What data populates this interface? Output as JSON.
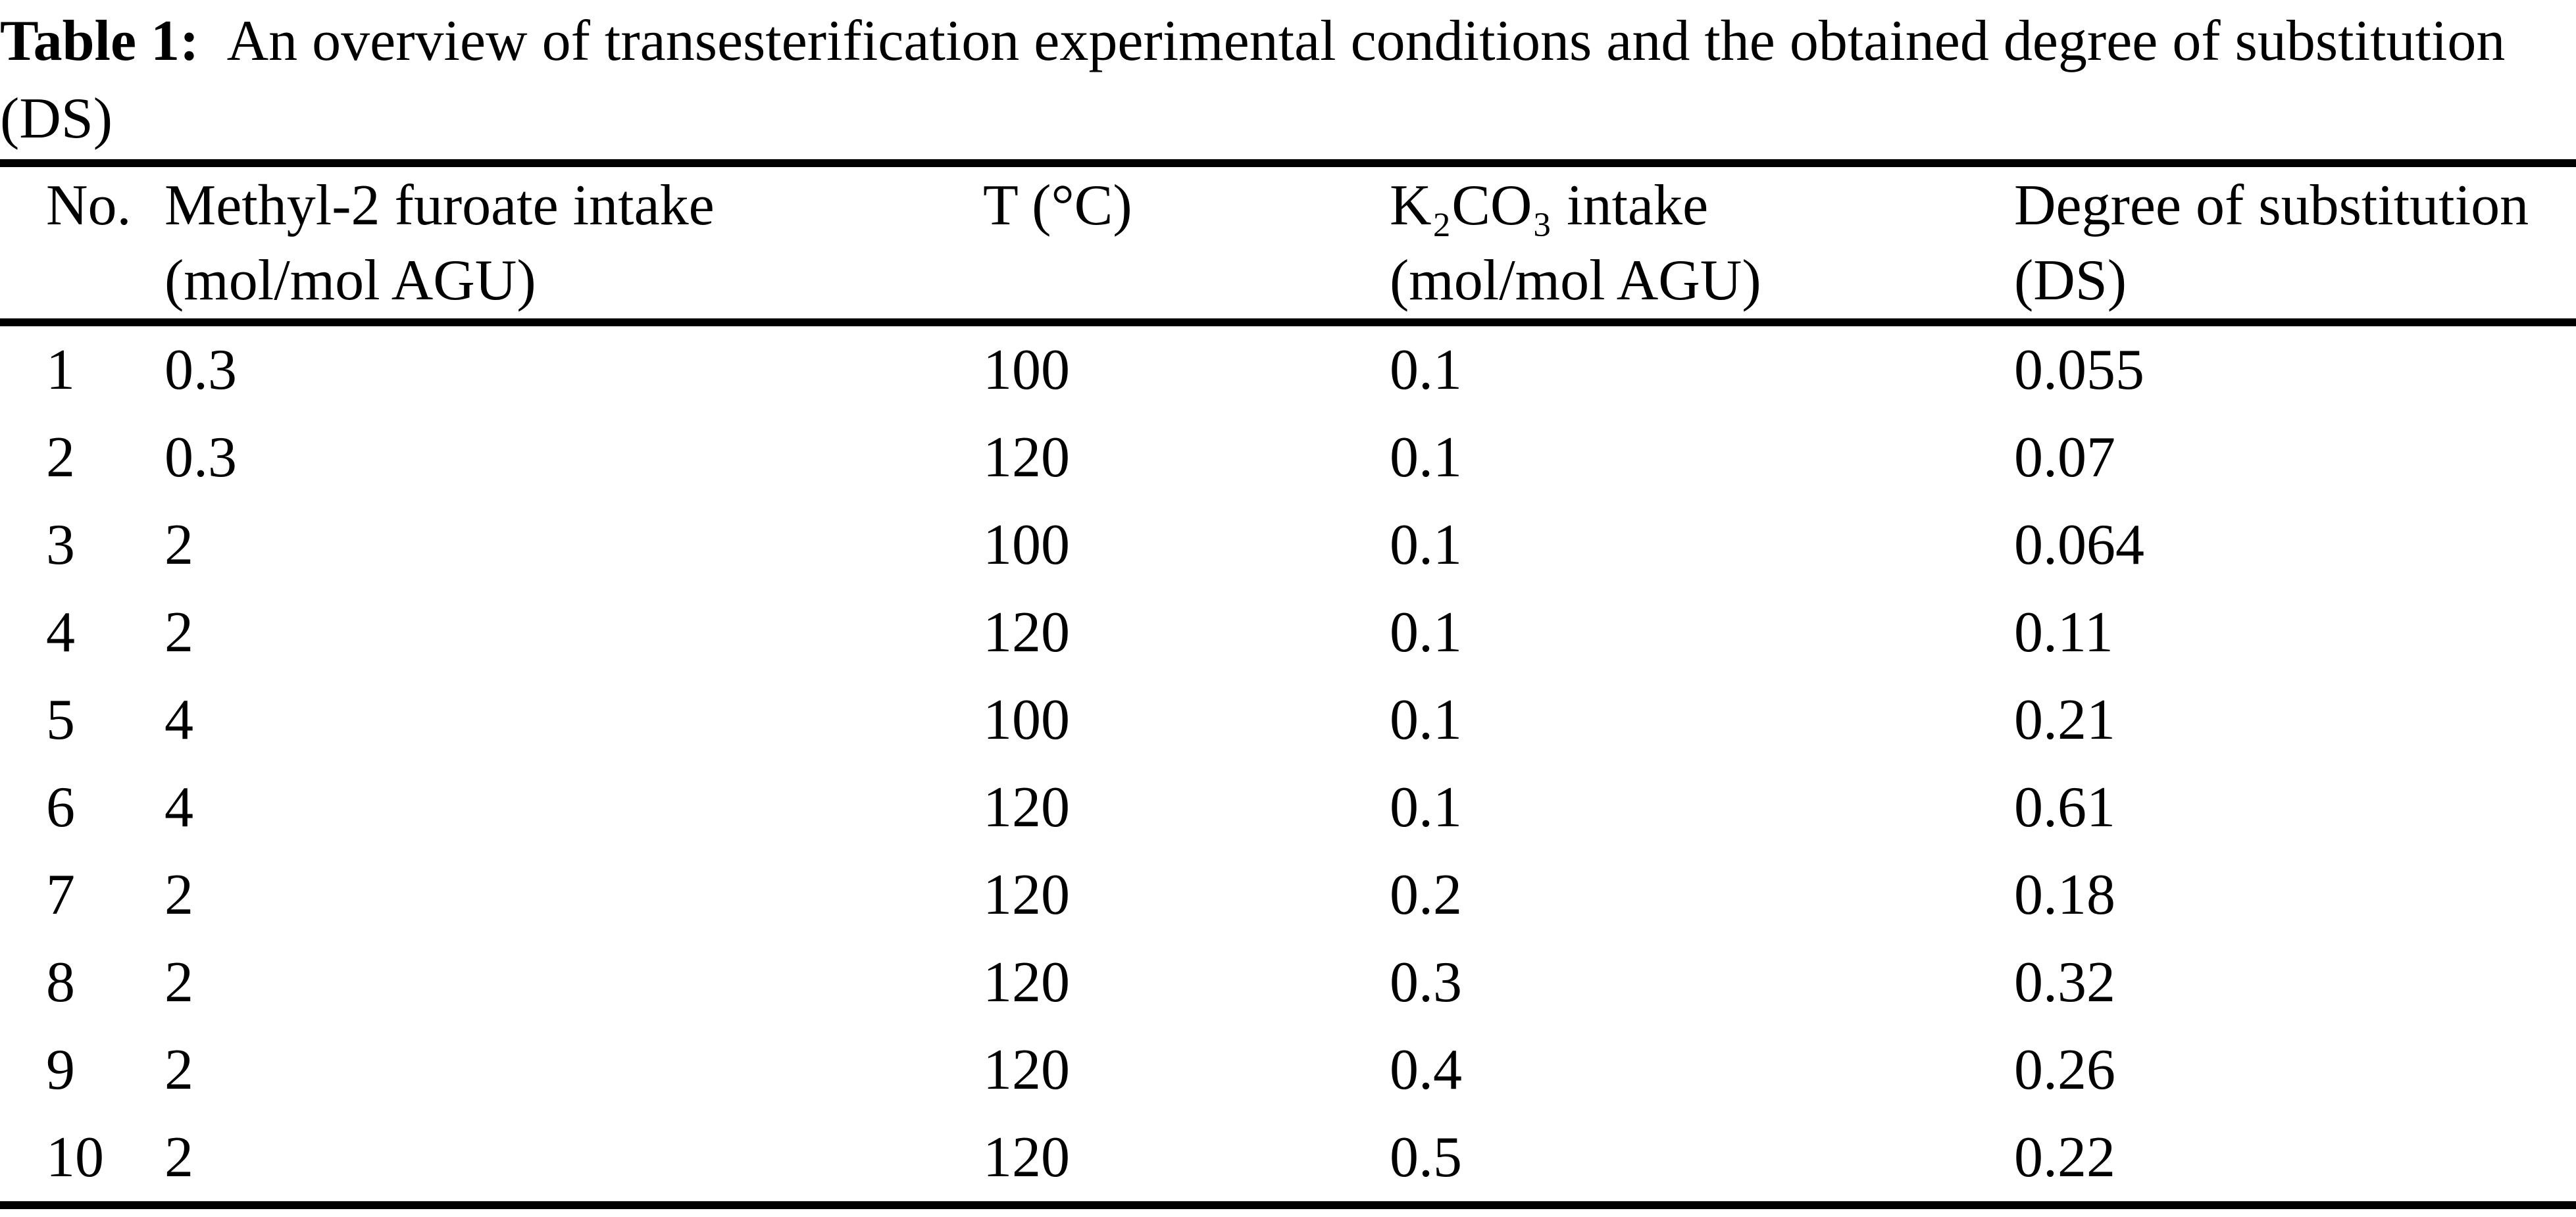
{
  "caption": {
    "label": "Table 1:",
    "line1": "An overview of transesterification experimental conditions and the obtained degree of substitution",
    "line2": "(DS)",
    "full_text": "Table 1: An overview of transesterification experimental conditions and the obtained degree of substitution (DS)"
  },
  "table": {
    "columns": [
      {
        "label": "No.",
        "sub": ""
      },
      {
        "label": "Methyl-2 furoate intake",
        "sub": "(mol/mol AGU)"
      },
      {
        "label": "T (°C)",
        "sub": ""
      },
      {
        "label": "K₂CO₃ intake",
        "sub": "(mol/mol AGU)"
      },
      {
        "label": "Degree of substitution",
        "sub": "(DS)"
      }
    ],
    "rows": [
      [
        "1",
        "0.3",
        "100",
        "0.1",
        "0.055"
      ],
      [
        "2",
        "0.3",
        "120",
        "0.1",
        "0.07"
      ],
      [
        "3",
        "2",
        "100",
        "0.1",
        "0.064"
      ],
      [
        "4",
        "2",
        "120",
        "0.1",
        "0.11"
      ],
      [
        "5",
        "4",
        "100",
        "0.1",
        "0.21"
      ],
      [
        "6",
        "4",
        "120",
        "0.1",
        "0.61"
      ],
      [
        "7",
        "2",
        "120",
        "0.2",
        "0.18"
      ],
      [
        "8",
        "2",
        "120",
        "0.3",
        "0.32"
      ],
      [
        "9",
        "2",
        "120",
        "0.4",
        "0.26"
      ],
      [
        "10",
        "2",
        "120",
        "0.5",
        "0.22"
      ]
    ]
  },
  "colors": {
    "text": "#000000",
    "background": "#ffffff",
    "rule": "#000000"
  }
}
